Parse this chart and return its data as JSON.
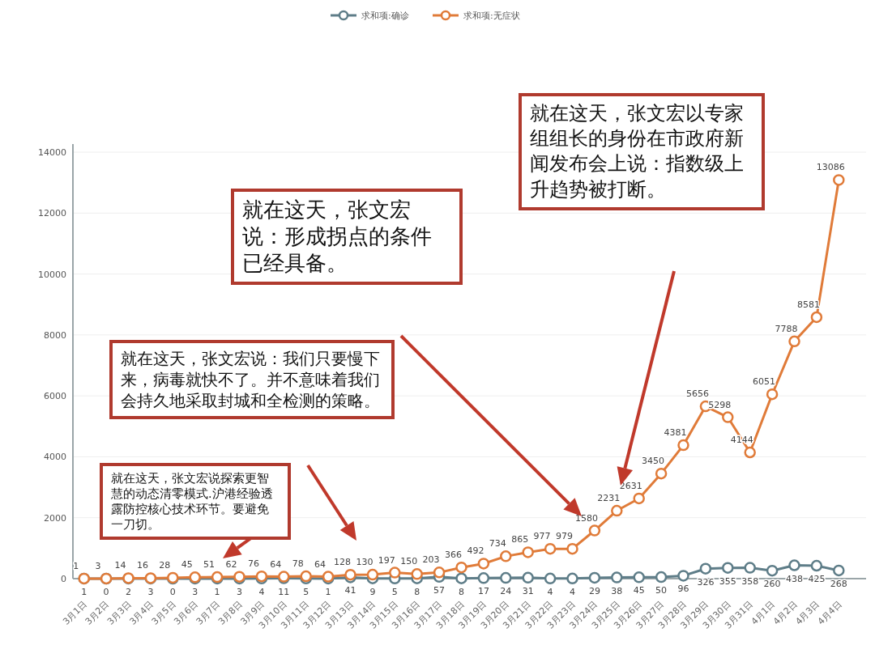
{
  "chart_data": {
    "type": "line",
    "categories": [
      "3月1日",
      "3月2日",
      "3月3日",
      "3月4日",
      "3月5日",
      "3月6日",
      "3月7日",
      "3月8日",
      "3月9日",
      "3月10日",
      "3月11日",
      "3月12日",
      "3月13日",
      "3月14日",
      "3月15日",
      "3月16日",
      "3月17日",
      "3月18日",
      "3月19日",
      "3月20日",
      "3月21日",
      "3月22日",
      "3月23日",
      "3月24日",
      "3月25日",
      "3月26日",
      "3月27日",
      "3月28日",
      "3月29日",
      "3月30日",
      "3月31日",
      "4月1日",
      "4月2日",
      "4月3日",
      "4月4日"
    ],
    "series": [
      {
        "name": "求和项:确诊",
        "color": "#5e7d88",
        "values": [
          1,
          0,
          2,
          3,
          0,
          3,
          1,
          3,
          4,
          11,
          5,
          1,
          41,
          9,
          5,
          8,
          57,
          8,
          17,
          24,
          31,
          4,
          4,
          29,
          38,
          45,
          50,
          96,
          326,
          355,
          358,
          260,
          438,
          425,
          268
        ]
      },
      {
        "name": "求和项:无症状",
        "color": "#e07b39",
        "values": [
          1,
          3,
          14,
          16,
          28,
          45,
          51,
          62,
          76,
          64,
          78,
          64,
          128,
          130,
          197,
          150,
          203,
          366,
          492,
          734,
          865,
          977,
          979,
          1580,
          2231,
          2631,
          3450,
          4381,
          5656,
          5298,
          4144,
          6051,
          7788,
          8581,
          13086
        ]
      }
    ],
    "ylim": [
      0,
      14000
    ],
    "yticks": [
      0,
      2000,
      4000,
      6000,
      8000,
      10000,
      12000,
      14000
    ],
    "grid": "y",
    "legend": "top",
    "marker": "circle",
    "data_labels": true,
    "annotations": [
      "就在这天，张文宏说探索更智慧的动态清零模式.沪港经验透露防控核心技术环节。要避免一刀切。",
      "就在这天，张文宏说：我们只要慢下来，病毒就快不了。并不意味着我们会持久地采取封城和全检测的策略。",
      "就在这天，张文宏说：形成拐点的条件已经具备。",
      "就在这天，张文宏以专家组组长的身份在市政府新闻发布会上说：指数级上升趋势被打断。"
    ]
  }
}
